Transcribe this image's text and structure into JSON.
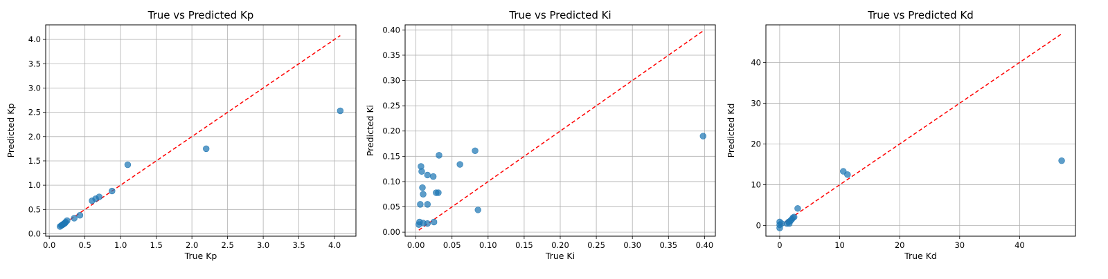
{
  "colors": {
    "point": "#1f77b4",
    "reference_line": "#ff0000",
    "grid": "#b0b0b0"
  },
  "chart_data": [
    {
      "type": "scatter",
      "title": "True vs Predicted Kp",
      "xlabel": "True Kp",
      "ylabel": "Predicted Kp",
      "xlim": [
        -0.05,
        4.3
      ],
      "ylim": [
        -0.05,
        4.3
      ],
      "xticks": [
        "0.0",
        "0.5",
        "1.0",
        "1.5",
        "2.0",
        "2.5",
        "3.0",
        "3.5",
        "4.0"
      ],
      "yticks": [
        "0.0",
        "0.5",
        "1.0",
        "1.5",
        "2.0",
        "2.5",
        "3.0",
        "3.5",
        "4.0"
      ],
      "grid": true,
      "reference_line": [
        [
          0.15,
          0.15
        ],
        [
          4.08,
          4.08
        ]
      ],
      "points": [
        [
          0.15,
          0.15
        ],
        [
          0.17,
          0.17
        ],
        [
          0.18,
          0.18
        ],
        [
          0.19,
          0.19
        ],
        [
          0.2,
          0.2
        ],
        [
          0.21,
          0.21
        ],
        [
          0.22,
          0.22
        ],
        [
          0.23,
          0.24
        ],
        [
          0.25,
          0.27
        ],
        [
          0.35,
          0.32
        ],
        [
          0.43,
          0.38
        ],
        [
          0.6,
          0.68
        ],
        [
          0.65,
          0.72
        ],
        [
          0.7,
          0.76
        ],
        [
          0.88,
          0.88
        ],
        [
          1.1,
          1.42
        ],
        [
          2.2,
          1.75
        ],
        [
          4.08,
          2.53
        ]
      ]
    },
    {
      "type": "scatter",
      "title": "True vs Predicted Ki",
      "xlabel": "True Ki",
      "ylabel": "Predicted Ki",
      "xlim": [
        -0.015,
        0.415
      ],
      "ylim": [
        -0.008,
        0.41
      ],
      "xticks": [
        "0.00",
        "0.05",
        "0.10",
        "0.15",
        "0.20",
        "0.25",
        "0.30",
        "0.35",
        "0.40"
      ],
      "yticks": [
        "0.00",
        "0.05",
        "0.10",
        "0.15",
        "0.20",
        "0.25",
        "0.30",
        "0.35",
        "0.40"
      ],
      "grid": true,
      "reference_line": [
        [
          0.004,
          0.004
        ],
        [
          0.398,
          0.398
        ]
      ],
      "points": [
        [
          0.004,
          0.015
        ],
        [
          0.005,
          0.02
        ],
        [
          0.006,
          0.055
        ],
        [
          0.007,
          0.13
        ],
        [
          0.008,
          0.12
        ],
        [
          0.009,
          0.088
        ],
        [
          0.01,
          0.075
        ],
        [
          0.01,
          0.018
        ],
        [
          0.016,
          0.055
        ],
        [
          0.016,
          0.113
        ],
        [
          0.016,
          0.017
        ],
        [
          0.024,
          0.11
        ],
        [
          0.025,
          0.02
        ],
        [
          0.028,
          0.078
        ],
        [
          0.031,
          0.078
        ],
        [
          0.032,
          0.152
        ],
        [
          0.061,
          0.134
        ],
        [
          0.082,
          0.161
        ],
        [
          0.086,
          0.044
        ],
        [
          0.398,
          0.19
        ]
      ]
    },
    {
      "type": "scatter",
      "title": "True vs Predicted Kd",
      "xlabel": "True Kd",
      "ylabel": "Predicted Kd",
      "xlim": [
        -2.3,
        49.3
      ],
      "ylim": [
        -2.6,
        49.2
      ],
      "xticks": [
        "0",
        "10",
        "20",
        "30",
        "40"
      ],
      "yticks": [
        "0",
        "10",
        "20",
        "30",
        "40"
      ],
      "grid": true,
      "reference_line": [
        [
          0,
          0
        ],
        [
          47,
          47
        ]
      ],
      "points": [
        [
          0,
          -0.6
        ],
        [
          0,
          0.2
        ],
        [
          0,
          0.9
        ],
        [
          0.3,
          0.5
        ],
        [
          1.2,
          0.5
        ],
        [
          1.5,
          0.9
        ],
        [
          1.6,
          0.5
        ],
        [
          1.8,
          1.2
        ],
        [
          2.0,
          1.5
        ],
        [
          2.2,
          1.9
        ],
        [
          2.4,
          2.1
        ],
        [
          3.0,
          4.2
        ],
        [
          10.6,
          13.3
        ],
        [
          11.3,
          12.5
        ],
        [
          47,
          15.9
        ]
      ]
    }
  ]
}
